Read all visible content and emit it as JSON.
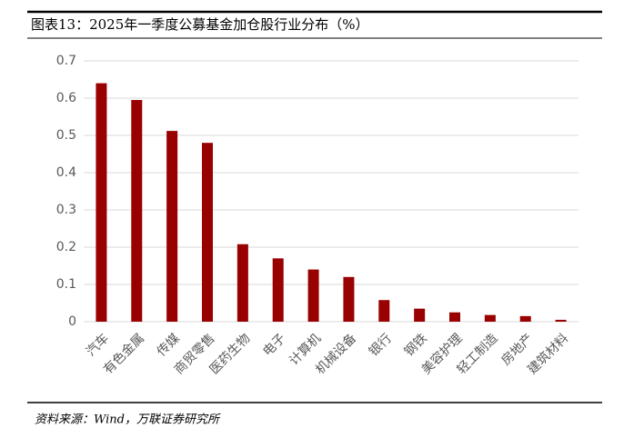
{
  "chart_data": {
    "type": "bar",
    "title": "图表13：2025年一季度公募基金加仓股行业分布（%）",
    "source": "资料来源：Wind，万联证券研究所",
    "categories": [
      "汽车",
      "有色金属",
      "传媒",
      "商贸零售",
      "医药生物",
      "电子",
      "计算机",
      "机械设备",
      "银行",
      "钢铁",
      "美容护理",
      "轻工制造",
      "房地产",
      "建筑材料"
    ],
    "values": [
      0.64,
      0.595,
      0.512,
      0.48,
      0.208,
      0.17,
      0.14,
      0.12,
      0.058,
      0.035,
      0.025,
      0.018,
      0.015,
      0.005
    ],
    "color": "#990000",
    "ylim": [
      0,
      0.7
    ],
    "yticks": [
      0,
      0.1,
      0.2,
      0.3,
      0.4,
      0.5,
      0.6,
      0.7
    ],
    "grid": true
  }
}
